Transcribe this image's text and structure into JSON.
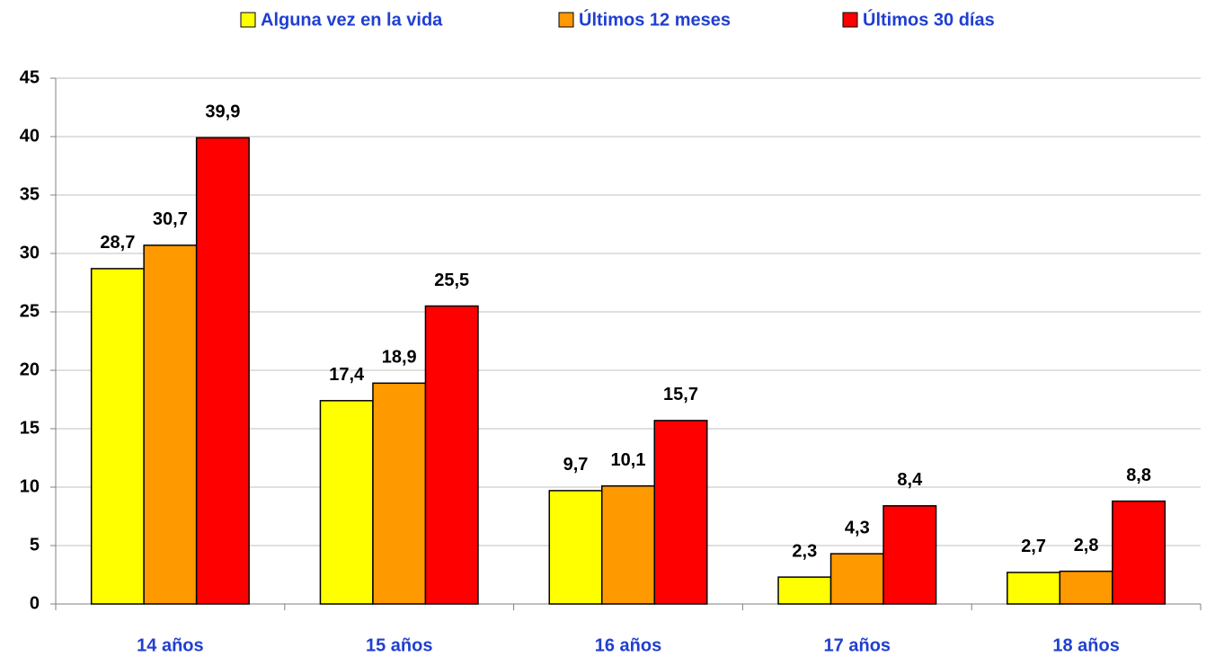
{
  "chart_data": {
    "type": "bar",
    "categories": [
      "14 años",
      "15 años",
      "16 años",
      "17 años",
      "18 años"
    ],
    "series": [
      {
        "name": "Alguna vez en la vida",
        "color": "#ffff00",
        "values": [
          28.7,
          17.4,
          9.7,
          2.3,
          2.7
        ],
        "value_labels": [
          "28,7",
          "17,4",
          "9,7",
          "2,3",
          "2,7"
        ]
      },
      {
        "name": "Últimos 12 meses",
        "color": "#ff9900",
        "values": [
          30.7,
          18.9,
          10.1,
          4.3,
          2.8
        ],
        "value_labels": [
          "30,7",
          "18,9",
          "10,1",
          "4,3",
          "2,8"
        ]
      },
      {
        "name": "Últimos 30 días",
        "color": "#ff0000",
        "values": [
          39.9,
          25.5,
          15.7,
          8.4,
          8.8
        ],
        "value_labels": [
          "39,9",
          "25,5",
          "15,7",
          "8,4",
          "8,8"
        ]
      }
    ],
    "ylim": [
      0,
      45
    ],
    "yticks": [
      0,
      5,
      10,
      15,
      20,
      25,
      30,
      35,
      40,
      45
    ],
    "grid": true,
    "legend": "top"
  }
}
